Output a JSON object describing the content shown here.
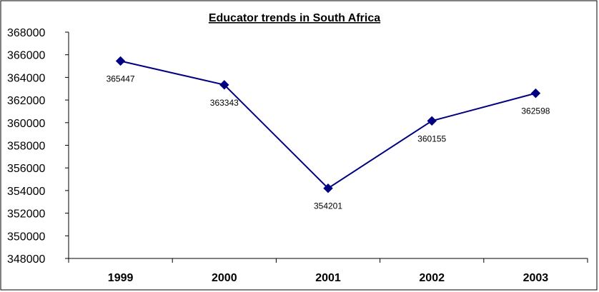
{
  "chart_data": {
    "type": "line",
    "title": "Educator trends in South Africa",
    "xlabel": "",
    "ylabel": "",
    "categories": [
      "1999",
      "2000",
      "2001",
      "2002",
      "2003"
    ],
    "series": [
      {
        "values": [
          365447,
          363343,
          354201,
          360155,
          362598
        ],
        "data_labels": [
          "365447",
          "363343",
          "354201",
          "360155",
          "362598"
        ],
        "color": "#000080"
      }
    ],
    "ylim": [
      348000,
      368000
    ],
    "yticks": [
      "348000",
      "350000",
      "352000",
      "354000",
      "356000",
      "358000",
      "360000",
      "362000",
      "364000",
      "366000",
      "368000"
    ],
    "grid": false,
    "legend": "none"
  }
}
